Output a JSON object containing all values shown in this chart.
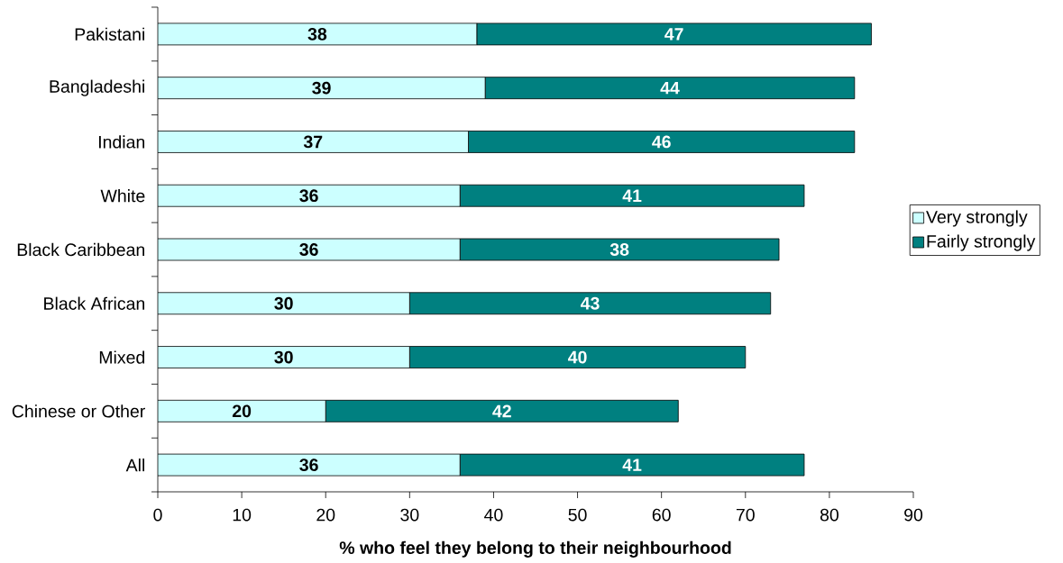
{
  "chart_data": {
    "type": "bar",
    "orientation": "horizontal",
    "stacked": true,
    "categories": [
      "Pakistani",
      "Bangladeshi",
      "Indian",
      "White",
      "Black Caribbean",
      "Black African",
      "Mixed",
      "Chinese or Other",
      "All"
    ],
    "series": [
      {
        "name": "Very strongly",
        "color": "#ccffff",
        "values": [
          38,
          39,
          37,
          36,
          36,
          30,
          30,
          20,
          36
        ]
      },
      {
        "name": "Fairly strongly",
        "color": "#008080",
        "values": [
          47,
          44,
          46,
          41,
          38,
          43,
          40,
          42,
          41
        ]
      }
    ],
    "xlabel": "% who feel they belong to their neighbourhood",
    "xlim": [
      0,
      90
    ],
    "xticks": [
      0,
      10,
      20,
      30,
      40,
      50,
      60,
      70,
      80,
      90
    ],
    "data_labels": true,
    "legend": "right"
  }
}
